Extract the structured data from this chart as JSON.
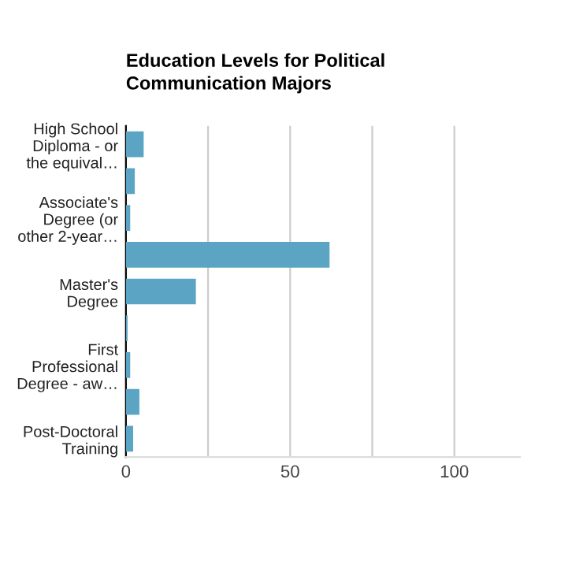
{
  "chart_data": {
    "type": "bar",
    "orientation": "horizontal",
    "title": "Education Levels for Political Communication Majors",
    "categories": [
      "High School Diploma - or the equival…",
      null,
      "Associate's Degree (or other 2-year…",
      null,
      "Master's Degree",
      null,
      "First Professional Degree - aw…",
      null,
      "Post-Doctoral Training"
    ],
    "values": [
      5.4,
      2.7,
      1.3,
      62,
      21.3,
      0.5,
      1.3,
      4.1,
      2.2
    ],
    "color": "#5ba4c3",
    "xlim": [
      0,
      120
    ],
    "xticks": [
      0,
      {
        "value": 25,
        "label": null
      },
      50,
      {
        "value": 75,
        "label": null
      },
      100
    ],
    "grid": "x"
  }
}
